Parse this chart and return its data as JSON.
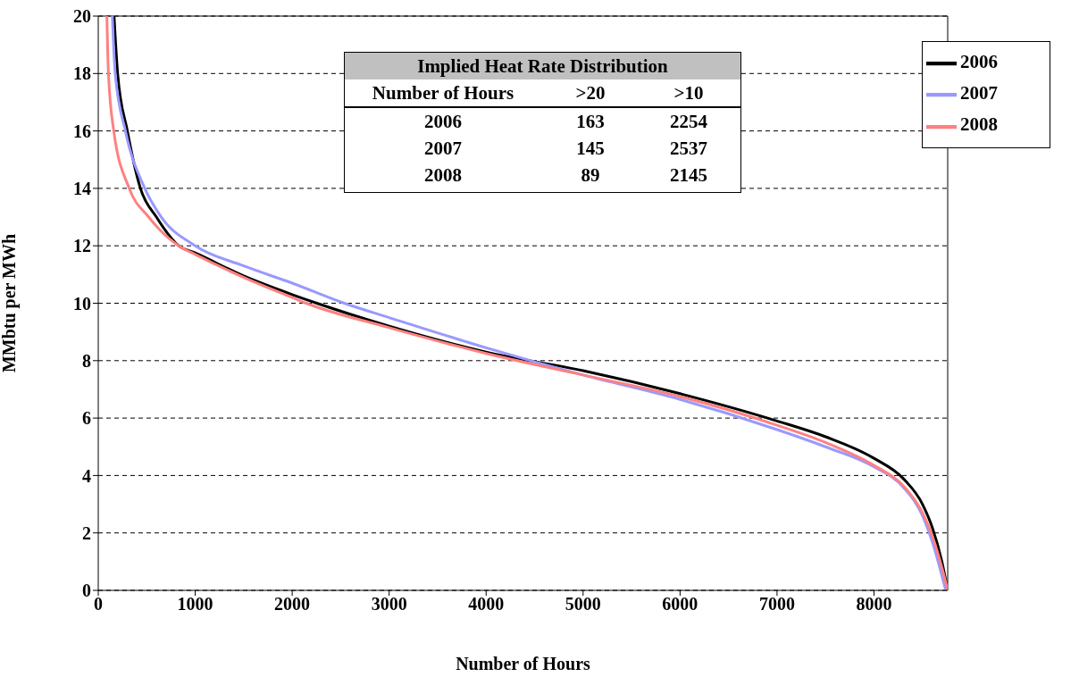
{
  "chart_data": {
    "type": "line",
    "xlabel": "Number of Hours",
    "ylabel": "MMbtu per MWh",
    "xlim": [
      0,
      8760
    ],
    "xticks": [
      0,
      1000,
      2000,
      3000,
      4000,
      5000,
      6000,
      7000,
      8000
    ],
    "ylim": [
      0,
      20
    ],
    "yticks": [
      0,
      2,
      4,
      6,
      8,
      10,
      12,
      14,
      16,
      18,
      20
    ],
    "grid": "y",
    "legend": "top right",
    "marker": "none",
    "line_style": "solid",
    "annotations": [
      "Implied Heat Rate Distribution",
      "Number of Hours",
      ">20",
      ">10",
      "2006",
      "163",
      "2254",
      "2007",
      "145",
      "2537",
      "2008",
      "89",
      "2145"
    ],
    "series": [
      {
        "name": "2006",
        "color": "#000000",
        "x": [
          163,
          200,
          300,
          435,
          600,
          830,
          1000,
          1500,
          2000,
          2254,
          3000,
          4000,
          5000,
          6000,
          7000,
          7500,
          8000,
          8300,
          8500,
          8600,
          8700,
          8760
        ],
        "values": [
          20,
          18,
          16,
          14,
          13,
          12,
          11.75,
          10.95,
          10.3,
          10,
          9.2,
          8.3,
          7.65,
          6.85,
          5.9,
          5.35,
          4.6,
          3.9,
          3,
          2.2,
          1,
          0
        ]
      },
      {
        "name": "2007",
        "color": "#9999ff",
        "x": [
          145,
          175,
          280,
          480,
          650,
          1000,
          1500,
          2000,
          2537,
          3000,
          4000,
          5000,
          6000,
          7000,
          7500,
          8000,
          8300,
          8500,
          8600,
          8740
        ],
        "values": [
          20,
          18,
          16,
          14,
          13,
          12,
          11.3,
          10.7,
          10,
          9.5,
          8.45,
          7.5,
          6.65,
          5.6,
          5,
          4.3,
          3.6,
          2.6,
          1.7,
          0
        ]
      },
      {
        "name": "2008",
        "color": "#ff8080",
        "x": [
          89,
          105,
          160,
          320,
          520,
          830,
          1000,
          1500,
          2000,
          2145,
          3000,
          4000,
          5000,
          6000,
          7000,
          7500,
          8000,
          8300,
          8500,
          8600,
          8700,
          8760
        ],
        "values": [
          20,
          18,
          16,
          14,
          13,
          12,
          11.7,
          10.9,
          10.2,
          10,
          9.15,
          8.25,
          7.5,
          6.75,
          5.75,
          5.15,
          4.35,
          3.65,
          2.7,
          1.9,
          0.8,
          0
        ]
      }
    ]
  }
}
